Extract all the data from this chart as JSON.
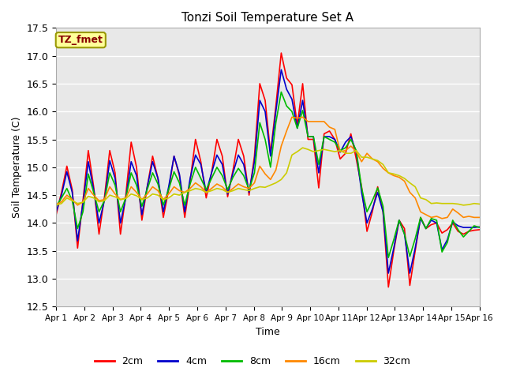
{
  "title": "Tonzi Soil Temperature Set A",
  "xlabel": "Time",
  "ylabel": "Soil Temperature (C)",
  "annotation": "TZ_fmet",
  "ylim": [
    12.5,
    17.5
  ],
  "yticks": [
    12.5,
    13.0,
    13.5,
    14.0,
    14.5,
    15.0,
    15.5,
    16.0,
    16.5,
    17.0,
    17.5
  ],
  "xlabels": [
    "Apr 1",
    "Apr 2",
    "Apr 3",
    "Apr 4",
    "Apr 5",
    "Apr 6",
    "Apr 7",
    "Apr 8",
    "Apr 9",
    "Apr 10",
    "Apr 11",
    "Apr 12",
    "Apr 13",
    "Apr 14",
    "Apr 15",
    "Apr 16"
  ],
  "series": {
    "2cm": {
      "color": "#FF0000",
      "data": [
        14.15,
        14.55,
        15.02,
        14.6,
        13.55,
        14.4,
        15.3,
        14.65,
        13.8,
        14.45,
        15.3,
        14.9,
        13.8,
        14.5,
        15.45,
        15.0,
        14.05,
        14.65,
        15.2,
        14.8,
        14.1,
        14.6,
        15.2,
        14.85,
        14.1,
        14.75,
        15.5,
        15.1,
        14.45,
        14.9,
        15.5,
        15.2,
        14.47,
        14.95,
        15.5,
        15.2,
        14.5,
        15.2,
        16.5,
        16.2,
        15.25,
        16.1,
        17.05,
        16.6,
        16.48,
        15.75,
        16.5,
        15.5,
        15.5,
        14.63,
        15.6,
        15.65,
        15.5,
        15.15,
        15.25,
        15.6,
        15.15,
        14.65,
        13.85,
        14.2,
        14.65,
        14.2,
        12.85,
        13.5,
        14.05,
        13.9,
        12.88,
        13.5,
        14.1,
        13.9,
        13.97,
        14.0,
        13.82,
        13.88,
        14.0,
        13.85,
        13.8,
        13.85,
        13.87,
        13.88
      ]
    },
    "4cm": {
      "color": "#0000CC",
      "data": [
        14.2,
        14.5,
        14.92,
        14.55,
        13.68,
        14.35,
        15.1,
        14.6,
        14.0,
        14.4,
        15.12,
        14.8,
        14.0,
        14.45,
        15.1,
        14.85,
        14.15,
        14.65,
        15.1,
        14.8,
        14.2,
        14.65,
        15.2,
        14.88,
        14.2,
        14.8,
        15.22,
        15.05,
        14.55,
        14.9,
        15.22,
        15.05,
        14.52,
        14.9,
        15.22,
        15.05,
        14.55,
        15.1,
        16.2,
        16.0,
        15.2,
        16.0,
        16.75,
        16.4,
        16.22,
        15.7,
        16.2,
        15.55,
        15.55,
        14.9,
        15.55,
        15.55,
        15.5,
        15.27,
        15.45,
        15.55,
        15.27,
        14.55,
        14.0,
        14.25,
        14.55,
        14.2,
        13.1,
        13.55,
        14.05,
        13.8,
        13.1,
        13.55,
        14.08,
        13.9,
        14.05,
        14.0,
        13.52,
        13.7,
        14.02,
        13.95,
        13.92,
        13.92,
        13.92,
        13.93
      ]
    },
    "8cm": {
      "color": "#00BB00",
      "data": [
        14.3,
        14.45,
        14.62,
        14.4,
        13.9,
        14.2,
        14.88,
        14.55,
        14.2,
        14.4,
        14.9,
        14.68,
        14.2,
        14.45,
        14.9,
        14.68,
        14.3,
        14.6,
        14.9,
        14.7,
        14.32,
        14.6,
        14.92,
        14.72,
        14.32,
        14.7,
        15.0,
        14.8,
        14.6,
        14.8,
        15.0,
        14.85,
        14.6,
        14.82,
        14.98,
        14.85,
        14.6,
        14.9,
        15.8,
        15.5,
        15.0,
        15.8,
        16.35,
        16.1,
        16.0,
        15.7,
        16.02,
        15.55,
        15.55,
        15.05,
        15.55,
        15.5,
        15.45,
        15.3,
        15.35,
        15.5,
        15.3,
        14.63,
        14.2,
        14.4,
        14.63,
        14.3,
        13.38,
        13.7,
        14.05,
        13.8,
        13.4,
        13.72,
        14.1,
        13.9,
        14.08,
        14.05,
        13.48,
        13.65,
        14.05,
        13.88,
        13.75,
        13.85,
        13.95,
        13.92
      ]
    },
    "16cm": {
      "color": "#FF8800",
      "data": [
        14.33,
        14.38,
        14.5,
        14.42,
        14.32,
        14.38,
        14.62,
        14.5,
        14.4,
        14.42,
        14.65,
        14.52,
        14.42,
        14.45,
        14.65,
        14.55,
        14.42,
        14.52,
        14.65,
        14.58,
        14.42,
        14.52,
        14.65,
        14.58,
        14.55,
        14.62,
        14.72,
        14.65,
        14.55,
        14.62,
        14.7,
        14.65,
        14.55,
        14.62,
        14.7,
        14.65,
        14.62,
        14.72,
        15.02,
        14.88,
        14.78,
        14.95,
        15.38,
        15.65,
        15.9,
        15.88,
        15.9,
        15.82,
        15.82,
        15.82,
        15.82,
        15.72,
        15.68,
        15.28,
        15.3,
        15.38,
        15.28,
        15.1,
        15.25,
        15.15,
        15.1,
        14.98,
        14.9,
        14.85,
        14.82,
        14.75,
        14.55,
        14.45,
        14.2,
        14.15,
        14.1,
        14.12,
        14.08,
        14.1,
        14.25,
        14.18,
        14.1,
        14.12,
        14.1,
        14.1
      ]
    },
    "32cm": {
      "color": "#CCCC00",
      "data": [
        14.32,
        14.35,
        14.45,
        14.4,
        14.35,
        14.37,
        14.48,
        14.45,
        14.38,
        14.4,
        14.5,
        14.47,
        14.42,
        14.44,
        14.52,
        14.49,
        14.42,
        14.45,
        14.52,
        14.5,
        14.42,
        14.45,
        14.52,
        14.5,
        14.55,
        14.58,
        14.62,
        14.6,
        14.55,
        14.58,
        14.62,
        14.6,
        14.55,
        14.58,
        14.62,
        14.6,
        14.58,
        14.62,
        14.65,
        14.64,
        14.68,
        14.72,
        14.78,
        14.9,
        15.22,
        15.28,
        15.35,
        15.32,
        15.28,
        15.3,
        15.32,
        15.3,
        15.28,
        15.3,
        15.25,
        15.25,
        15.3,
        15.18,
        15.18,
        15.15,
        15.12,
        15.05,
        14.9,
        14.88,
        14.85,
        14.8,
        14.72,
        14.65,
        14.45,
        14.42,
        14.35,
        14.36,
        14.35,
        14.35,
        14.35,
        14.34,
        14.32,
        14.33,
        14.35,
        14.34
      ]
    }
  },
  "bg_color": "#E8E8E8",
  "grid_color": "#FFFFFF",
  "annotation_bg": "#FFFF99",
  "annotation_border": "#999900",
  "spine_color": "#AAAAAA",
  "n_days": 15,
  "n_points": 80
}
